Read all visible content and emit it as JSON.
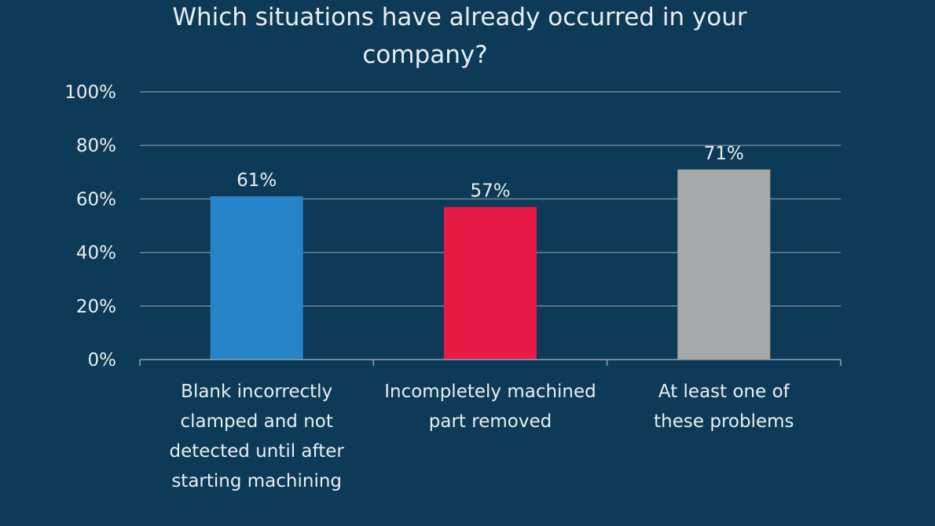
{
  "chart_data": {
    "type": "bar",
    "title_lines": [
      "Which situations have already occurred in your",
      "company?"
    ],
    "categories": [
      [
        "Blank incorrectly",
        "clamped and not",
        "detected until after",
        "starting machining"
      ],
      [
        "Incompletely machined",
        "part removed"
      ],
      [
        "At least one of",
        "these problems"
      ]
    ],
    "values": [
      61,
      57,
      71
    ],
    "value_labels": [
      "61%",
      "57%",
      "71%"
    ],
    "bar_colors": [
      "#2784c8",
      "#e81a45",
      "#a6a8a9"
    ],
    "ylim": [
      0,
      100
    ],
    "yticks": [
      0,
      20,
      40,
      60,
      80,
      100
    ],
    "ytick_labels": [
      "0%",
      "20%",
      "40%",
      "60%",
      "80%",
      "100%"
    ],
    "xlabel": "",
    "ylabel": "",
    "grid": true,
    "legend": "none"
  }
}
